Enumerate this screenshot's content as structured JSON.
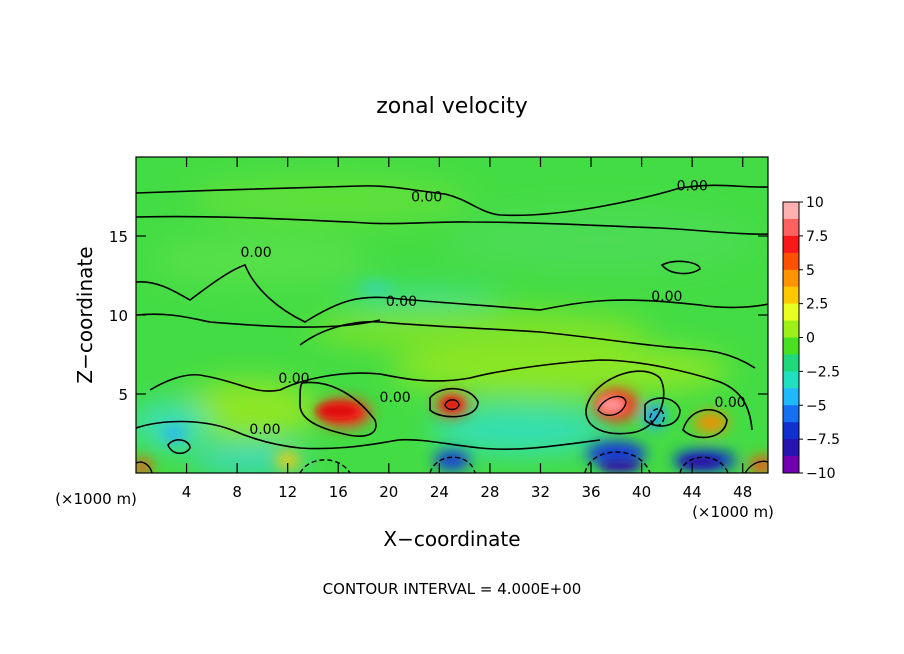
{
  "chart_data": {
    "type": "heatmap",
    "title": "zonal velocity",
    "xlabel": "X−coordinate",
    "ylabel": "Z−coordinate",
    "x_unit_left": "(×1000 m)",
    "x_unit_right": "(×1000 m)",
    "xlim": [
      0,
      50
    ],
    "ylim": [
      0,
      20
    ],
    "x_ticks": [
      "4",
      "8",
      "12",
      "16",
      "20",
      "24",
      "28",
      "32",
      "36",
      "40",
      "44",
      "48"
    ],
    "x_tick_values": [
      4,
      8,
      12,
      16,
      20,
      24,
      28,
      32,
      36,
      40,
      44,
      48
    ],
    "y_ticks": [
      "5",
      "10",
      "15"
    ],
    "y_tick_values": [
      5,
      10,
      15
    ],
    "colorbar": {
      "ticks": [
        "10",
        "7.5",
        "5",
        "2.5",
        "0",
        "−2.5",
        "−5",
        "−7.5",
        "−10"
      ],
      "tick_values": [
        10,
        7.5,
        5,
        2.5,
        0,
        -2.5,
        -5,
        -7.5,
        -10
      ],
      "range": [
        -10,
        10
      ]
    },
    "contour_labels": [
      {
        "text": "0.00",
        "x": 23,
        "z": 17.5
      },
      {
        "text": "0.00",
        "x": 44,
        "z": 18.2
      },
      {
        "text": "0.00",
        "x": 9.5,
        "z": 14.0
      },
      {
        "text": "0.00",
        "x": 21,
        "z": 10.9
      },
      {
        "text": "0.00",
        "x": 42,
        "z": 11.2
      },
      {
        "text": "0.00",
        "x": 12.5,
        "z": 6.0
      },
      {
        "text": "0.00",
        "x": 20.5,
        "z": 4.8
      },
      {
        "text": "0.00",
        "x": 10.2,
        "z": 2.8
      },
      {
        "text": "0.00",
        "x": 47,
        "z": 4.5
      }
    ],
    "features": [
      {
        "x": 16.5,
        "z": 3.8,
        "value": 8.5
      },
      {
        "x": 25,
        "z": 4.3,
        "value": 8
      },
      {
        "x": 38,
        "z": 4.3,
        "value": 10
      },
      {
        "x": 45.5,
        "z": 3.2,
        "value": 5
      },
      {
        "x": 12,
        "z": 0.8,
        "value": 4
      },
      {
        "x": 25,
        "z": 0.8,
        "value": -7.5
      },
      {
        "x": 38,
        "z": 1.2,
        "value": -8
      },
      {
        "x": 45,
        "z": 0.8,
        "value": -8.5
      },
      {
        "x": 41,
        "z": 3.6,
        "value": -4
      },
      {
        "x": 3,
        "z": 2.5,
        "value": -2.5
      },
      {
        "x": 19,
        "z": 11.7,
        "value": -2.5
      },
      {
        "x": 0.5,
        "z": 0.4,
        "value": 7
      },
      {
        "x": 49.5,
        "z": 0.5,
        "value": 7
      }
    ],
    "annotation": "CONTOUR INTERVAL = 4.000E+00",
    "grid": false
  }
}
